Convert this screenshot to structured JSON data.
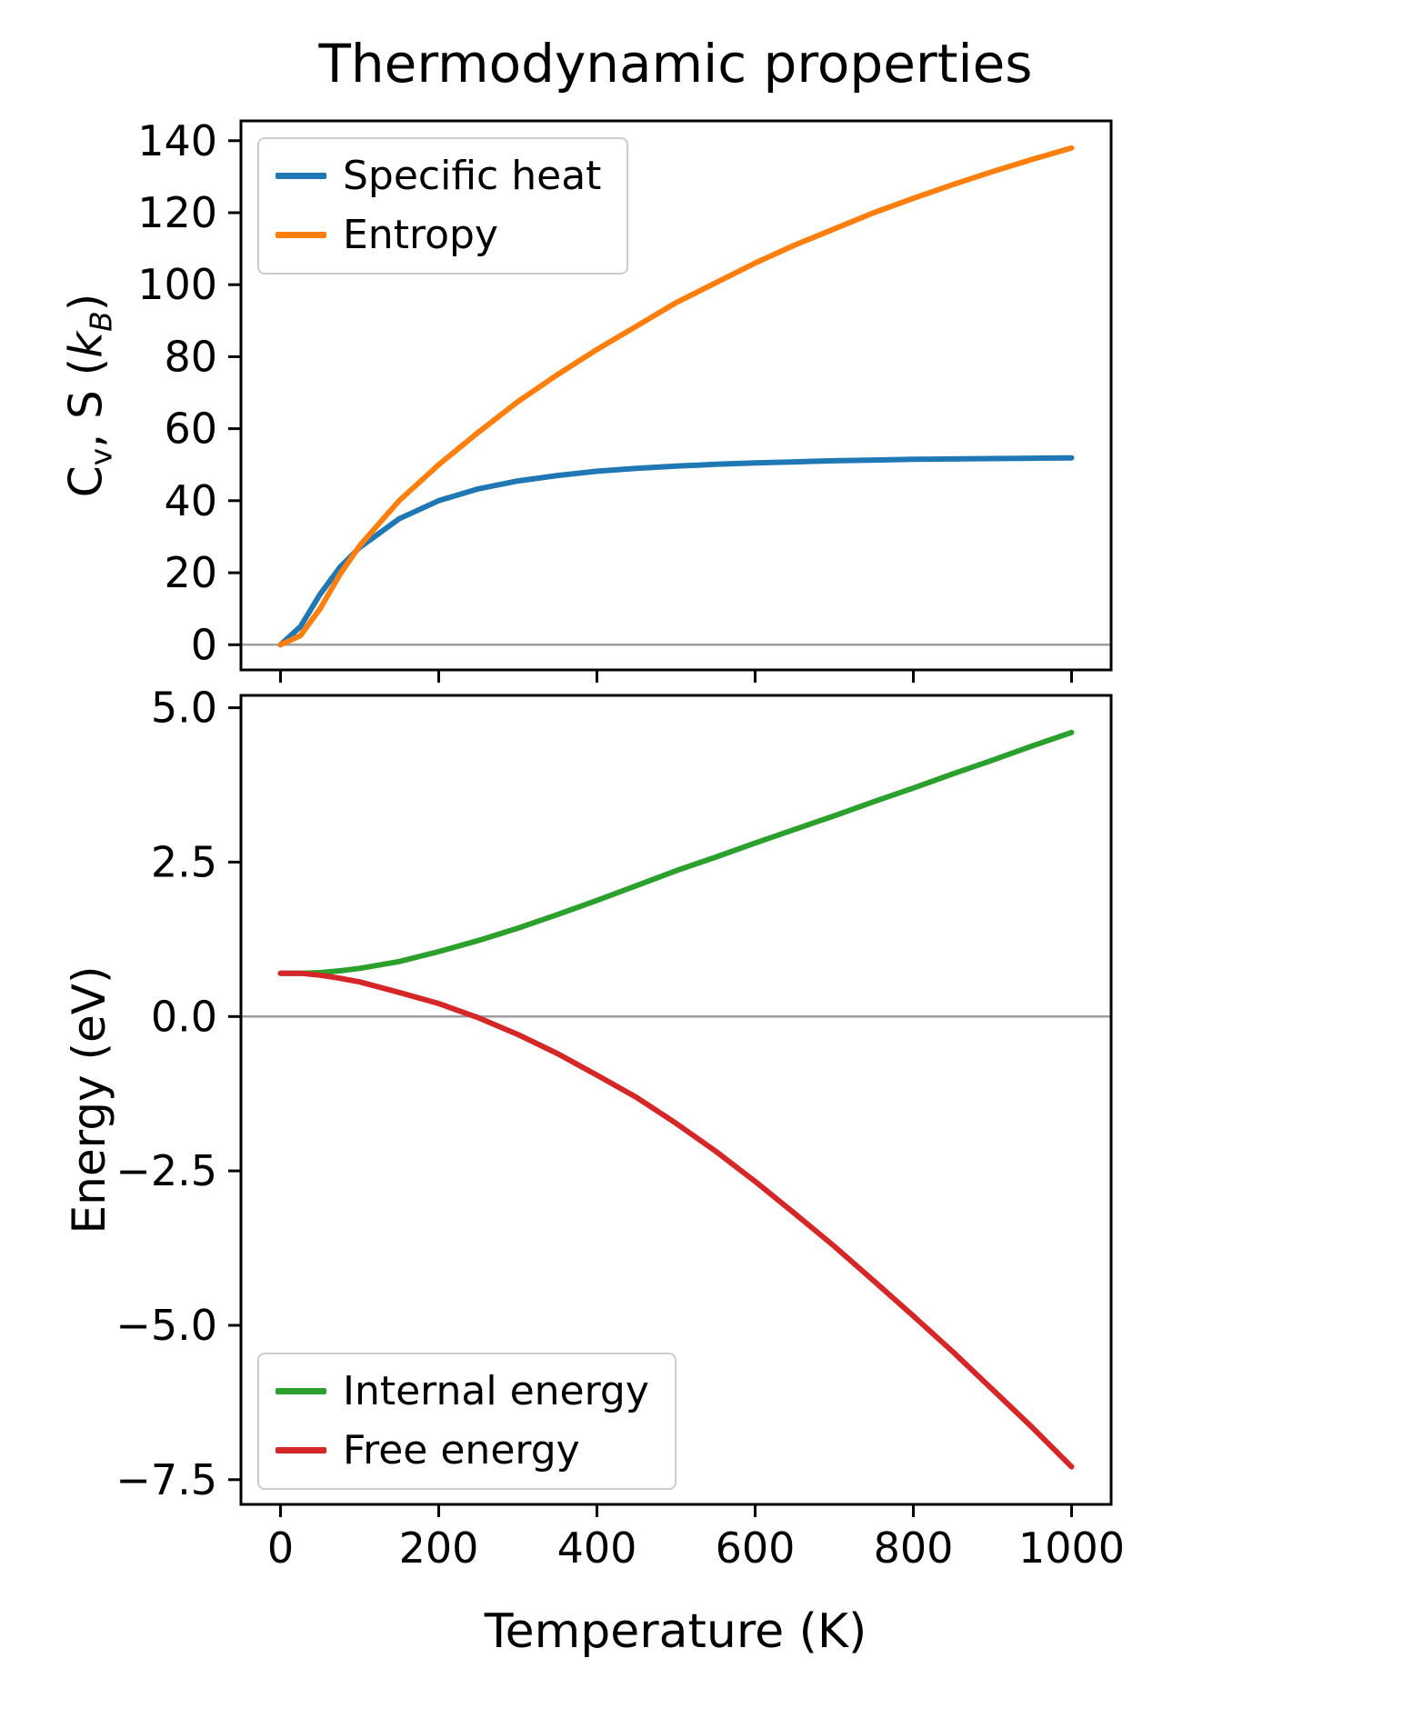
{
  "figure": {
    "title": "Thermodynamic properties",
    "xlabel": "Temperature (K)",
    "background_color": "#ffffff",
    "zero_line_color": "#9e9e9e"
  },
  "chart_data": [
    {
      "type": "line",
      "title": "",
      "ylabel": "Cv, S (kB)",
      "ylabel_parts": {
        "c": "C",
        "c_sub": "v",
        "mid": ", S (",
        "k": "k",
        "k_sub": "B",
        "close": ")"
      },
      "xlabel": "",
      "xlim": [
        -50,
        1050
      ],
      "ylim": [
        -7,
        145.5
      ],
      "xticks": [
        0,
        200,
        400,
        600,
        800,
        1000
      ],
      "xticklabels": [
        "0",
        "200",
        "400",
        "600",
        "800",
        "1000"
      ],
      "show_xtick_labels": false,
      "yticks": [
        0,
        20,
        40,
        60,
        80,
        100,
        120,
        140
      ],
      "yticklabels": [
        "0",
        "20",
        "40",
        "60",
        "80",
        "100",
        "120",
        "140"
      ],
      "grid": false,
      "zero_line": true,
      "legend_position": "upper left",
      "x": [
        0,
        25,
        50,
        75,
        100,
        150,
        200,
        250,
        300,
        350,
        400,
        450,
        500,
        550,
        600,
        650,
        700,
        750,
        800,
        850,
        900,
        950,
        1000
      ],
      "series": [
        {
          "name": "Specific heat",
          "color": "#1f77b4",
          "values": [
            0,
            5,
            14,
            21.5,
            27,
            35,
            40,
            43.3,
            45.5,
            47,
            48.2,
            49,
            49.6,
            50.1,
            50.5,
            50.8,
            51.1,
            51.3,
            51.5,
            51.6,
            51.7,
            51.8,
            51.9
          ]
        },
        {
          "name": "Entropy",
          "color": "#ff7f0e",
          "values": [
            0,
            2.5,
            10,
            19.5,
            27.5,
            40,
            50,
            59,
            67.5,
            75,
            82,
            88.5,
            95,
            100.5,
            106,
            111,
            115.5,
            120,
            124,
            127.8,
            131.4,
            134.8,
            138
          ]
        }
      ]
    },
    {
      "type": "line",
      "title": "",
      "ylabel": "Energy (eV)",
      "xlabel": "Temperature (K)",
      "xlim": [
        -50,
        1050
      ],
      "ylim": [
        -7.9,
        5.2
      ],
      "xticks": [
        0,
        200,
        400,
        600,
        800,
        1000
      ],
      "xticklabels": [
        "0",
        "200",
        "400",
        "600",
        "800",
        "1000"
      ],
      "show_xtick_labels": true,
      "yticks": [
        -7.5,
        -5.0,
        -2.5,
        0.0,
        2.5,
        5.0
      ],
      "yticklabels": [
        "−7.5",
        "−5.0",
        "−2.5",
        "0.0",
        "2.5",
        "5.0"
      ],
      "grid": false,
      "zero_line": true,
      "legend_position": "lower left",
      "x": [
        0,
        25,
        50,
        75,
        100,
        150,
        200,
        250,
        300,
        350,
        400,
        450,
        500,
        550,
        600,
        650,
        700,
        750,
        800,
        850,
        900,
        950,
        1000
      ],
      "series": [
        {
          "name": "Internal energy",
          "color": "#2ca02c",
          "values": [
            0.7,
            0.7,
            0.71,
            0.74,
            0.78,
            0.89,
            1.05,
            1.23,
            1.43,
            1.65,
            1.88,
            2.12,
            2.36,
            2.58,
            2.81,
            3.03,
            3.25,
            3.48,
            3.7,
            3.93,
            4.15,
            4.38,
            4.6
          ]
        },
        {
          "name": "Free energy",
          "color": "#d62728",
          "values": [
            0.7,
            0.7,
            0.67,
            0.62,
            0.56,
            0.39,
            0.21,
            -0.02,
            -0.29,
            -0.6,
            -0.95,
            -1.31,
            -1.73,
            -2.18,
            -2.67,
            -3.19,
            -3.72,
            -4.28,
            -4.85,
            -5.43,
            -6.04,
            -6.65,
            -7.29
          ]
        }
      ]
    }
  ]
}
